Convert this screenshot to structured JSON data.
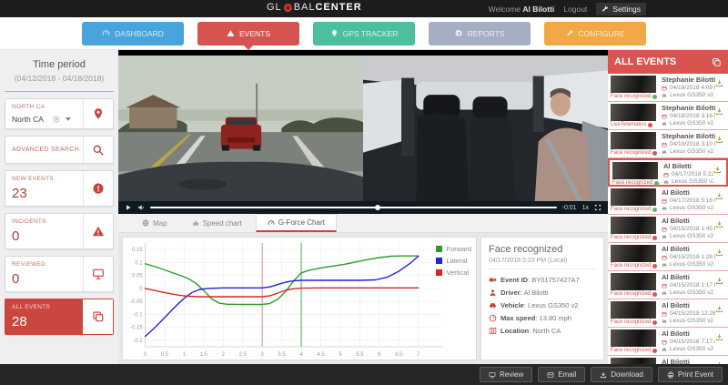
{
  "header": {
    "logo_part1": "GL",
    "logo_part2": "BAL",
    "logo_part3": "CENTER",
    "welcome_label": "Welcome",
    "user_name": "Al Bilotti",
    "logout_label": "Logout",
    "settings_label": "Settings"
  },
  "nav": {
    "tabs": [
      {
        "label": "DASHBOARD",
        "icon": "dashboard-icon",
        "color": "#47a4dc",
        "active": false
      },
      {
        "label": "EVENTS",
        "icon": "warning-icon",
        "color": "#d65450",
        "active": true
      },
      {
        "label": "GPS TRACKER",
        "icon": "map-pin-icon",
        "color": "#4cbf9f",
        "active": false
      },
      {
        "label": "REPORTS",
        "icon": "gear-icon",
        "color": "#a6aec5",
        "active": false
      },
      {
        "label": "CONFIGURE",
        "icon": "wrench-icon",
        "color": "#f2a844",
        "active": false
      }
    ]
  },
  "sidebar": {
    "time_period_title": "Time period",
    "time_period_range": "(04/12/2018 - 04/18/2018)",
    "location_label": "NORTH CA",
    "location_value": "North CA",
    "advanced_search_label": "ADVANCED SEARCH",
    "stats": [
      {
        "label": "NEW EVENTS",
        "value": "23",
        "icon": "alert-badge-icon",
        "active": false
      },
      {
        "label": "INCIDENTS",
        "value": "0",
        "icon": "warning-icon",
        "active": false
      },
      {
        "label": "REVIEWED",
        "value": "0",
        "icon": "monitor-icon",
        "active": false
      },
      {
        "label": "ALL EVENTS",
        "value": "28",
        "icon": "copy-icon",
        "active": true
      }
    ]
  },
  "player": {
    "time_remaining": "-0:01",
    "rate": "1x",
    "progress_pct": 56
  },
  "view_tabs": [
    {
      "label": "Map",
      "icon": "globe-icon",
      "active": false
    },
    {
      "label": "Speed chart",
      "icon": "bar-chart-icon",
      "active": false
    },
    {
      "label": "G-Force Chart",
      "icon": "gauge-icon",
      "active": true
    }
  ],
  "chart_data": {
    "type": "line",
    "title": "",
    "xlabel": "",
    "ylabel": "",
    "xlim": [
      0,
      7.15
    ],
    "ylim": [
      -0.225,
      0.175
    ],
    "grid": true,
    "legend_position": "top-right",
    "x_ticks": [
      0,
      0.5,
      1,
      1.5,
      2,
      2.5,
      3,
      3.5,
      4,
      4.5,
      5,
      5.5,
      6,
      6.5,
      7
    ],
    "y_ticks": [
      0.15,
      0.1,
      0.05,
      0,
      -0.05,
      -0.1,
      -0.15,
      -0.2
    ],
    "markers": [
      {
        "x": 3,
        "color": "#e08a86"
      },
      {
        "x": 4,
        "color": "#4f9e4f"
      }
    ],
    "series": [
      {
        "name": "Forward",
        "color": "#2f9a2f",
        "points": [
          [
            0,
            0.095
          ],
          [
            0.3,
            0.082
          ],
          [
            0.6,
            0.066
          ],
          [
            0.9,
            0.05
          ],
          [
            1.1,
            0.038
          ],
          [
            1.3,
            0.02
          ],
          [
            1.5,
            -0.008
          ],
          [
            1.7,
            -0.04
          ],
          [
            1.9,
            -0.057
          ],
          [
            2.1,
            -0.061
          ],
          [
            2.4,
            -0.062
          ],
          [
            2.7,
            -0.062
          ],
          [
            3,
            -0.062
          ],
          [
            3.2,
            -0.058
          ],
          [
            3.4,
            -0.042
          ],
          [
            3.6,
            -0.012
          ],
          [
            3.8,
            0.028
          ],
          [
            4,
            0.06
          ],
          [
            4.2,
            0.07
          ],
          [
            4.5,
            0.079
          ],
          [
            4.8,
            0.086
          ],
          [
            5.1,
            0.093
          ],
          [
            5.4,
            0.102
          ],
          [
            5.7,
            0.111
          ],
          [
            6,
            0.119
          ],
          [
            6.3,
            0.124
          ],
          [
            6.6,
            0.125
          ],
          [
            7,
            0.125
          ]
        ]
      },
      {
        "name": "Lateral",
        "color": "#2222dd",
        "points": [
          [
            0,
            -0.185
          ],
          [
            0.2,
            -0.158
          ],
          [
            0.4,
            -0.128
          ],
          [
            0.6,
            -0.097
          ],
          [
            0.8,
            -0.066
          ],
          [
            1,
            -0.038
          ],
          [
            1.2,
            -0.016
          ],
          [
            1.4,
            -0.004
          ],
          [
            1.6,
            0
          ],
          [
            2,
            0.002
          ],
          [
            2.5,
            0.002
          ],
          [
            3,
            0.002
          ],
          [
            3.2,
            0.006
          ],
          [
            3.4,
            0.015
          ],
          [
            3.6,
            0.024
          ],
          [
            3.8,
            0.029
          ],
          [
            4,
            0.031
          ],
          [
            4.5,
            0.031
          ],
          [
            5,
            0.031
          ],
          [
            5.5,
            0.031
          ],
          [
            5.9,
            0.033
          ],
          [
            6.2,
            0.043
          ],
          [
            6.5,
            0.066
          ],
          [
            6.8,
            0.098
          ],
          [
            7,
            0.124
          ]
        ]
      },
      {
        "name": "Vertical",
        "color": "#dd2222",
        "points": [
          [
            0,
            0
          ],
          [
            0.3,
            -0.01
          ],
          [
            0.6,
            -0.019
          ],
          [
            0.9,
            -0.027
          ],
          [
            1.1,
            -0.03
          ],
          [
            1.4,
            -0.032
          ],
          [
            2,
            -0.032
          ],
          [
            2.6,
            -0.032
          ],
          [
            3,
            -0.032
          ],
          [
            3.2,
            -0.028
          ],
          [
            3.4,
            -0.018
          ],
          [
            3.6,
            -0.007
          ],
          [
            3.8,
            -0.001
          ],
          [
            4,
            0.001
          ],
          [
            4.5,
            0.002
          ],
          [
            5,
            0.002
          ],
          [
            5.5,
            0.002
          ],
          [
            6,
            0.002
          ],
          [
            6.5,
            0.002
          ],
          [
            7,
            0.002
          ]
        ]
      }
    ]
  },
  "detail": {
    "title": "Face recognized",
    "timestamp": "04/17/2018 5:23 PM (Local)",
    "rows": [
      {
        "icon": "video-camera-icon",
        "label": "Event ID",
        "value": "BY01757427A7"
      },
      {
        "icon": "driver-icon",
        "label": "Driver",
        "value": "Al Bilotti"
      },
      {
        "icon": "car-icon",
        "label": "Vehicle",
        "value": "Lexus GS350 v2"
      },
      {
        "icon": "speedometer-icon",
        "label": "Max speed",
        "value": "13.80 mph"
      },
      {
        "icon": "map-icon",
        "label": "Location",
        "value": "North CA"
      }
    ]
  },
  "events_panel": {
    "title": "ALL EVENTS",
    "items": [
      {
        "name": "Stephanie Bilotti",
        "date": "04/18/2018 4:09 PM",
        "vehicle": "Lexus GS350 v2",
        "type": "Face recognized",
        "status_color": "#5cb85c",
        "selected": false
      },
      {
        "name": "Stephanie Bilotti",
        "date": "04/18/2018 3:16 PM",
        "vehicle": "Lexus GS350 v2",
        "type": "LiveTelematics",
        "status_color": "#d9534f",
        "selected": false
      },
      {
        "name": "Stephanie Bilotti",
        "date": "04/18/2018 3:10 PM",
        "vehicle": "Lexus GS350 v2",
        "type": "Face recognized",
        "status_color": "#d9534f",
        "selected": false
      },
      {
        "name": "Al Bilotti",
        "date": "04/17/2018 5:23 PM",
        "vehicle": "Lexus GS350 v2",
        "type": "Face recognized",
        "status_color": "#5cb85c",
        "selected": true
      },
      {
        "name": "Al Bilotti",
        "date": "04/17/2018 5:16 PM",
        "vehicle": "Lexus GS350 v2",
        "type": "Face recognized",
        "status_color": "#5cb85c",
        "selected": false
      },
      {
        "name": "Al Bilotti",
        "date": "04/15/2018 1:45 PM",
        "vehicle": "Lexus GS350 v2",
        "type": "Face recognized",
        "status_color": "#d9534f",
        "selected": false
      },
      {
        "name": "Al Bilotti",
        "date": "04/15/2018 1:28 PM",
        "vehicle": "Lexus GS350 v2",
        "type": "Face recognized",
        "status_color": "#d9534f",
        "selected": false
      },
      {
        "name": "Al Bilotti",
        "date": "04/15/2018 1:17 PM",
        "vehicle": "Lexus GS350 v2",
        "type": "Face recognized",
        "status_color": "#d9534f",
        "selected": false
      },
      {
        "name": "Al Bilotti",
        "date": "04/15/2018 12:28 PM",
        "vehicle": "Lexus GS350 v2",
        "type": "Face recognized",
        "status_color": "#d9534f",
        "selected": false
      },
      {
        "name": "Al Bilotti",
        "date": "04/15/2018 7:17 AM",
        "vehicle": "Lexus GS350 v2",
        "type": "Face recognized",
        "status_color": "#d9534f",
        "selected": false
      },
      {
        "name": "Al Bilotti",
        "date": "",
        "vehicle": "",
        "type": "",
        "status_color": "",
        "selected": false
      }
    ]
  },
  "footer": {
    "buttons": [
      {
        "label": "Review",
        "icon": "monitor-icon"
      },
      {
        "label": "Email",
        "icon": "email-icon"
      },
      {
        "label": "Download",
        "icon": "download-icon"
      },
      {
        "label": "Print Event",
        "icon": "print-icon"
      }
    ]
  }
}
